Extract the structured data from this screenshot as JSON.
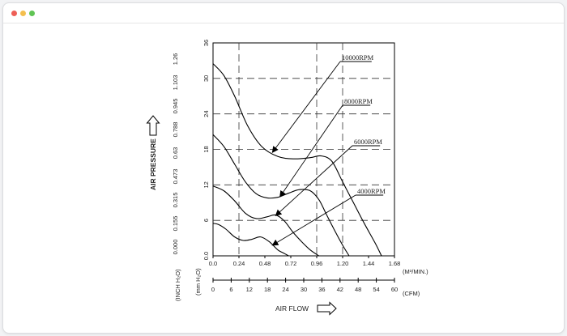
{
  "window": {
    "controls": [
      "close",
      "minimize",
      "maximize"
    ]
  },
  "chart_data": {
    "type": "line",
    "title": "",
    "xlabel": "AIR FLOW",
    "ylabel": "AIR PRESSURE",
    "x_unit_primary": "(M³/MIN.)",
    "x_unit_secondary": "(CFM)",
    "y_unit_primary": "(mm H₂O)",
    "y_unit_secondary": "(INCH H₂O)",
    "xlim": [
      0,
      1.68
    ],
    "ylim": [
      0,
      36
    ],
    "x_ticks": [
      "0.0",
      "0.24",
      "0.48",
      "0.72",
      "0.96",
      "1.20",
      "1.44",
      "1.68"
    ],
    "x_ticks_cfm": [
      "0",
      "6",
      "12",
      "18",
      "24",
      "30",
      "36",
      "42",
      "48",
      "54",
      "60"
    ],
    "y_ticks": [
      "0.0",
      "6",
      "12",
      "18",
      "24",
      "30",
      "36"
    ],
    "y_ticks_inch": [
      "0.000",
      "0.155",
      "0.315",
      "0.473",
      "0.63",
      "0.788",
      "0.945",
      "1.103",
      "1.26"
    ],
    "grid": "dashed",
    "series": [
      {
        "name": "10000RPM",
        "x": [
          0.0,
          0.1,
          0.2,
          0.32,
          0.45,
          0.6,
          0.75,
          0.9,
          1.0,
          1.1,
          1.2,
          1.3,
          1.4,
          1.5,
          1.56
        ],
        "y": [
          32.5,
          30.5,
          27,
          22,
          18.5,
          16.8,
          16.4,
          16.6,
          16.9,
          16.0,
          12.5,
          9.0,
          5.5,
          2.2,
          0
        ]
      },
      {
        "name": "8000RPM",
        "x": [
          0.0,
          0.1,
          0.2,
          0.3,
          0.4,
          0.5,
          0.6,
          0.7,
          0.8,
          0.9,
          0.98,
          1.05,
          1.12,
          1.2,
          1.26
        ],
        "y": [
          20.5,
          18.5,
          15.5,
          12.5,
          10.5,
          9.8,
          9.9,
          10.6,
          11.2,
          11.0,
          9.5,
          7.0,
          4.5,
          1.8,
          0
        ]
      },
      {
        "name": "6000RPM",
        "x": [
          0.0,
          0.1,
          0.2,
          0.3,
          0.4,
          0.5,
          0.58,
          0.66,
          0.74,
          0.82,
          0.9,
          0.98
        ],
        "y": [
          11.8,
          11.0,
          9.3,
          7.2,
          6.3,
          6.6,
          6.9,
          5.9,
          4.0,
          2.4,
          1.0,
          0
        ]
      },
      {
        "name": "4000RPM",
        "x": [
          0.0,
          0.05,
          0.12,
          0.2,
          0.28,
          0.36,
          0.44,
          0.52,
          0.6,
          0.65,
          0.7
        ],
        "y": [
          5.5,
          5.3,
          4.5,
          3.2,
          2.6,
          2.8,
          3.2,
          2.4,
          1.0,
          0.5,
          0
        ]
      }
    ],
    "annotations": [
      {
        "label": "10000RPM",
        "arrow_to": [
          0.55,
          17.5
        ]
      },
      {
        "label": "8000RPM",
        "arrow_to": [
          0.62,
          10.0
        ]
      },
      {
        "label": "6000RPM",
        "arrow_to": [
          0.58,
          6.8
        ]
      },
      {
        "label": "4000RPM",
        "arrow_to": [
          0.55,
          1.8
        ]
      }
    ]
  }
}
